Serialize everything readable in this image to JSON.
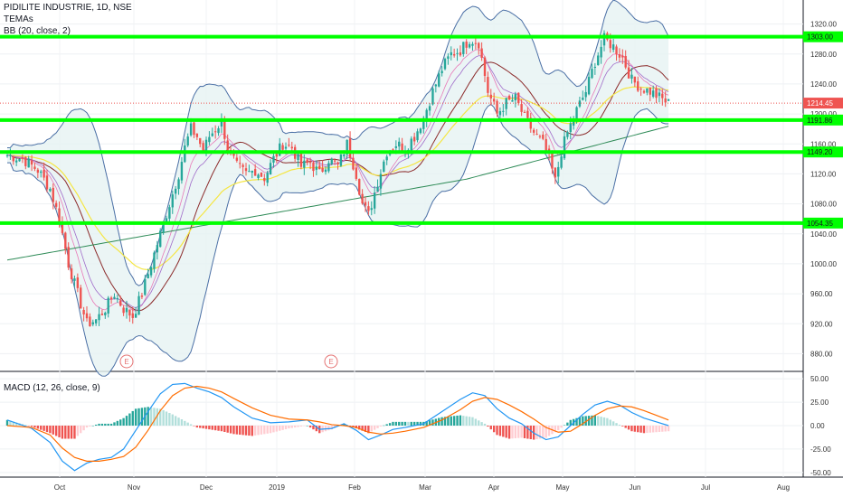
{
  "header": {
    "symbol_line": "PIDILITE INDUSTRIE, 1D, NSE",
    "indicator_1": "TEMAs",
    "indicator_2": "BB (20, close, 2)",
    "macd_label": "MACD (12, 26, close, 9)"
  },
  "chart_data": {
    "type": "candlestick",
    "colors": {
      "up": "#26a69a",
      "down": "#ef5350",
      "level": "#00ff00",
      "bb": "#4a6fa5",
      "bb_fill": "#e6f3f3",
      "ema_slow": "#8b2a2a",
      "sma_long": "#2e8b57",
      "ema_yellow": "#f5e642",
      "macd": "#2196f3",
      "signal": "#ff6d00"
    },
    "x_ticks": [
      "Oct",
      "Nov",
      "Dec",
      "2019",
      "Feb",
      "Mar",
      "Apr",
      "May",
      "Jun",
      "Jul",
      "Aug"
    ],
    "y_ticks": [
      1320,
      1280,
      1240,
      1200,
      1160,
      1120,
      1080,
      1040,
      1000,
      960,
      920,
      880
    ],
    "y_range": [
      860,
      1340
    ],
    "last_price": "1214.45",
    "levels": [
      {
        "value": 1303,
        "label": "1303.00"
      },
      {
        "value": 1191.86,
        "label": "1191.86"
      },
      {
        "value": 1149.2,
        "label": "1149.20"
      },
      {
        "value": 1054.35,
        "label": "1054.35"
      }
    ],
    "earnings_markers": [
      "E",
      "E"
    ],
    "close_path": [
      [
        0,
        1145
      ],
      [
        5,
        1140
      ],
      [
        10,
        1125
      ],
      [
        14,
        1100
      ],
      [
        17,
        1060
      ],
      [
        20,
        1000
      ],
      [
        23,
        960
      ],
      [
        26,
        920
      ],
      [
        29,
        925
      ],
      [
        32,
        940
      ],
      [
        35,
        960
      ],
      [
        38,
        940
      ],
      [
        41,
        930
      ],
      [
        44,
        960
      ],
      [
        47,
        1000
      ],
      [
        50,
        1040
      ],
      [
        53,
        1080
      ],
      [
        56,
        1120
      ],
      [
        58,
        1155
      ],
      [
        60,
        1180
      ],
      [
        62,
        1170
      ],
      [
        64,
        1150
      ],
      [
        66,
        1170
      ],
      [
        68,
        1180
      ],
      [
        70,
        1190
      ],
      [
        72,
        1155
      ],
      [
        75,
        1130
      ],
      [
        78,
        1120
      ],
      [
        81,
        1125
      ],
      [
        84,
        1115
      ],
      [
        87,
        1140
      ],
      [
        90,
        1160
      ],
      [
        93,
        1155
      ],
      [
        96,
        1130
      ],
      [
        99,
        1135
      ],
      [
        102,
        1120
      ],
      [
        105,
        1140
      ],
      [
        108,
        1130
      ],
      [
        111,
        1160
      ],
      [
        114,
        1120
      ],
      [
        116,
        1080
      ],
      [
        118,
        1065
      ],
      [
        121,
        1110
      ],
      [
        124,
        1150
      ],
      [
        127,
        1160
      ],
      [
        130,
        1155
      ],
      [
        133,
        1170
      ],
      [
        136,
        1195
      ],
      [
        139,
        1230
      ],
      [
        142,
        1260
      ],
      [
        145,
        1280
      ],
      [
        148,
        1285
      ],
      [
        151,
        1300
      ],
      [
        154,
        1295
      ],
      [
        157,
        1230
      ],
      [
        160,
        1200
      ],
      [
        163,
        1215
      ],
      [
        166,
        1220
      ],
      [
        169,
        1195
      ],
      [
        172,
        1175
      ],
      [
        175,
        1160
      ],
      [
        177,
        1140
      ],
      [
        179,
        1110
      ],
      [
        181,
        1150
      ],
      [
        183,
        1175
      ],
      [
        186,
        1205
      ],
      [
        189,
        1230
      ],
      [
        192,
        1270
      ],
      [
        195,
        1300
      ],
      [
        198,
        1290
      ],
      [
        201,
        1275
      ],
      [
        204,
        1245
      ],
      [
        207,
        1235
      ],
      [
        210,
        1230
      ],
      [
        213,
        1222
      ],
      [
        216,
        1214.45
      ]
    ],
    "bars_total": 260,
    "macd": {
      "y_ticks": [
        50,
        25,
        0,
        -25,
        -50
      ],
      "y_range": [
        -55,
        55
      ],
      "path": [
        [
          0,
          6
        ],
        [
          8,
          -3
        ],
        [
          14,
          -18
        ],
        [
          18,
          -38
        ],
        [
          22,
          -48
        ],
        [
          26,
          -40
        ],
        [
          30,
          -36
        ],
        [
          34,
          -34
        ],
        [
          38,
          -25
        ],
        [
          42,
          -5
        ],
        [
          46,
          15
        ],
        [
          50,
          34
        ],
        [
          54,
          44
        ],
        [
          58,
          45
        ],
        [
          62,
          40
        ],
        [
          66,
          36
        ],
        [
          70,
          30
        ],
        [
          74,
          20
        ],
        [
          80,
          8
        ],
        [
          86,
          3
        ],
        [
          92,
          4
        ],
        [
          98,
          6
        ],
        [
          102,
          -4
        ],
        [
          106,
          -3
        ],
        [
          110,
          2
        ],
        [
          114,
          -5
        ],
        [
          118,
          -15
        ],
        [
          122,
          -10
        ],
        [
          126,
          -4
        ],
        [
          130,
          -2
        ],
        [
          136,
          2
        ],
        [
          142,
          15
        ],
        [
          148,
          28
        ],
        [
          152,
          35
        ],
        [
          156,
          32
        ],
        [
          160,
          18
        ],
        [
          164,
          8
        ],
        [
          168,
          2
        ],
        [
          172,
          -8
        ],
        [
          176,
          -15
        ],
        [
          180,
          -12
        ],
        [
          184,
          0
        ],
        [
          188,
          12
        ],
        [
          192,
          22
        ],
        [
          196,
          26
        ],
        [
          200,
          22
        ],
        [
          204,
          14
        ],
        [
          208,
          8
        ],
        [
          212,
          4
        ],
        [
          216,
          0
        ]
      ],
      "signal": [
        [
          0,
          0
        ],
        [
          8,
          -2
        ],
        [
          14,
          -10
        ],
        [
          18,
          -24
        ],
        [
          22,
          -34
        ],
        [
          26,
          -38
        ],
        [
          30,
          -38
        ],
        [
          34,
          -36
        ],
        [
          38,
          -33
        ],
        [
          42,
          -23
        ],
        [
          46,
          -5
        ],
        [
          50,
          16
        ],
        [
          54,
          32
        ],
        [
          58,
          40
        ],
        [
          62,
          42
        ],
        [
          66,
          40
        ],
        [
          70,
          36
        ],
        [
          74,
          29
        ],
        [
          80,
          19
        ],
        [
          86,
          11
        ],
        [
          92,
          7
        ],
        [
          98,
          6
        ],
        [
          102,
          4
        ],
        [
          106,
          1
        ],
        [
          110,
          0
        ],
        [
          114,
          -2
        ],
        [
          118,
          -7
        ],
        [
          122,
          -9
        ],
        [
          126,
          -8
        ],
        [
          130,
          -6
        ],
        [
          136,
          -2
        ],
        [
          142,
          6
        ],
        [
          148,
          17
        ],
        [
          152,
          26
        ],
        [
          156,
          30
        ],
        [
          160,
          28
        ],
        [
          164,
          22
        ],
        [
          168,
          15
        ],
        [
          172,
          7
        ],
        [
          176,
          -2
        ],
        [
          180,
          -7
        ],
        [
          184,
          -6
        ],
        [
          188,
          2
        ],
        [
          192,
          11
        ],
        [
          196,
          18
        ],
        [
          200,
          21
        ],
        [
          204,
          20
        ],
        [
          208,
          16
        ],
        [
          212,
          11
        ],
        [
          216,
          6
        ]
      ]
    }
  }
}
